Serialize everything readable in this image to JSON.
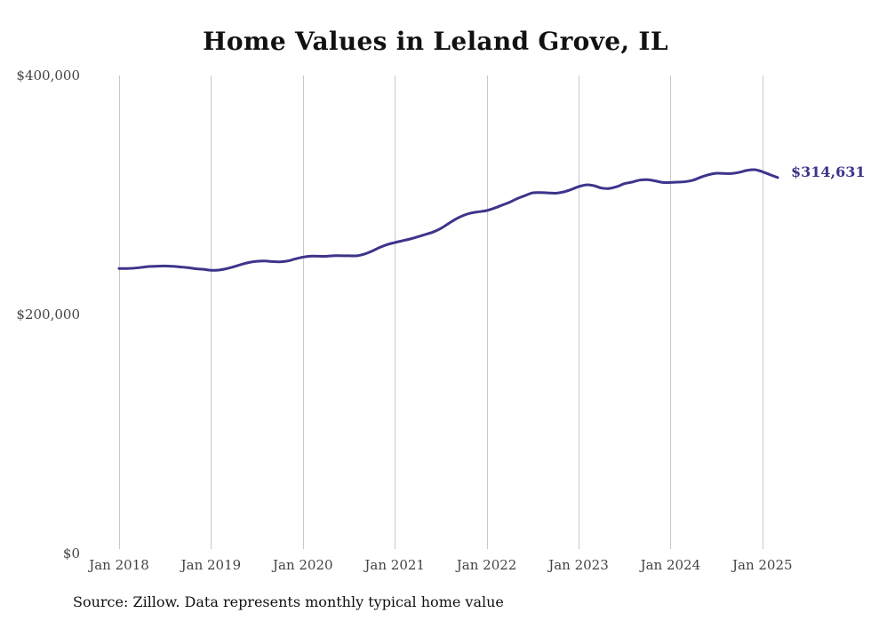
{
  "chart_data": {
    "type": "line",
    "title": "Home Values in Leland Grove, IL",
    "xlabel": "",
    "ylabel": "",
    "ylim": [
      0,
      400000
    ],
    "yticks": [
      {
        "value": 0,
        "label": "$0"
      },
      {
        "value": 200000,
        "label": "$200,000"
      },
      {
        "value": 400000,
        "label": "$400,000"
      }
    ],
    "xlim": [
      "2018-01",
      "2025-03"
    ],
    "xticks": [
      {
        "x": "2018-01",
        "label": "Jan 2018"
      },
      {
        "x": "2019-01",
        "label": "Jan 2019"
      },
      {
        "x": "2020-01",
        "label": "Jan 2020"
      },
      {
        "x": "2021-01",
        "label": "Jan 2021"
      },
      {
        "x": "2022-01",
        "label": "Jan 2022"
      },
      {
        "x": "2023-01",
        "label": "Jan 2023"
      },
      {
        "x": "2024-01",
        "label": "Jan 2024"
      },
      {
        "x": "2025-01",
        "label": "Jan 2025"
      }
    ],
    "grid": "vertical",
    "line_color": "#3d348b",
    "end_label": "$314,631",
    "series": [
      {
        "x": [
          "2018-01",
          "2018-02",
          "2018-03",
          "2018-04",
          "2018-05",
          "2018-06",
          "2018-07",
          "2018-08",
          "2018-09",
          "2018-10",
          "2018-11",
          "2018-12",
          "2019-01",
          "2019-02",
          "2019-03",
          "2019-04",
          "2019-05",
          "2019-06",
          "2019-07",
          "2019-08",
          "2019-09",
          "2019-10",
          "2019-11",
          "2019-12",
          "2020-01",
          "2020-02",
          "2020-03",
          "2020-04",
          "2020-05",
          "2020-06",
          "2020-07",
          "2020-08",
          "2020-09",
          "2020-10",
          "2020-11",
          "2020-12",
          "2021-01",
          "2021-02",
          "2021-03",
          "2021-04",
          "2021-05",
          "2021-06",
          "2021-07",
          "2021-08",
          "2021-09",
          "2021-10",
          "2021-11",
          "2021-12",
          "2022-01",
          "2022-02",
          "2022-03",
          "2022-04",
          "2022-05",
          "2022-06",
          "2022-07",
          "2022-08",
          "2022-09",
          "2022-10",
          "2022-11",
          "2022-12",
          "2023-01",
          "2023-02",
          "2023-03",
          "2023-04",
          "2023-05",
          "2023-06",
          "2023-07",
          "2023-08",
          "2023-09",
          "2023-10",
          "2023-11",
          "2023-12",
          "2024-01",
          "2024-02",
          "2024-03",
          "2024-04",
          "2024-05",
          "2024-06",
          "2024-07",
          "2024-08",
          "2024-09",
          "2024-10",
          "2024-11",
          "2024-12",
          "2025-01",
          "2025-02",
          "2025-03"
        ],
        "values": [
          238500,
          238500,
          238800,
          239500,
          240200,
          240400,
          240600,
          240300,
          239800,
          239200,
          238300,
          237800,
          237000,
          237200,
          238300,
          240000,
          242000,
          243600,
          244500,
          244800,
          244300,
          244100,
          244800,
          246500,
          248000,
          248800,
          248800,
          248700,
          249200,
          249200,
          249200,
          249100,
          250500,
          253000,
          256000,
          258500,
          260200,
          261700,
          263200,
          265000,
          267000,
          269000,
          272000,
          276000,
          280000,
          283000,
          285000,
          286000,
          287000,
          289000,
          291500,
          294000,
          297000,
          299500,
          301800,
          302000,
          301800,
          301500,
          302500,
          304500,
          307000,
          308500,
          307800,
          305800,
          305500,
          307000,
          309500,
          310800,
          312500,
          312800,
          311800,
          310500,
          310500,
          310800,
          311200,
          312500,
          315000,
          317000,
          318200,
          318000,
          318000,
          319000,
          320600,
          321200,
          319500,
          317000,
          314631
        ]
      }
    ]
  },
  "source_note": "Source: Zillow. Data represents monthly typical home value"
}
